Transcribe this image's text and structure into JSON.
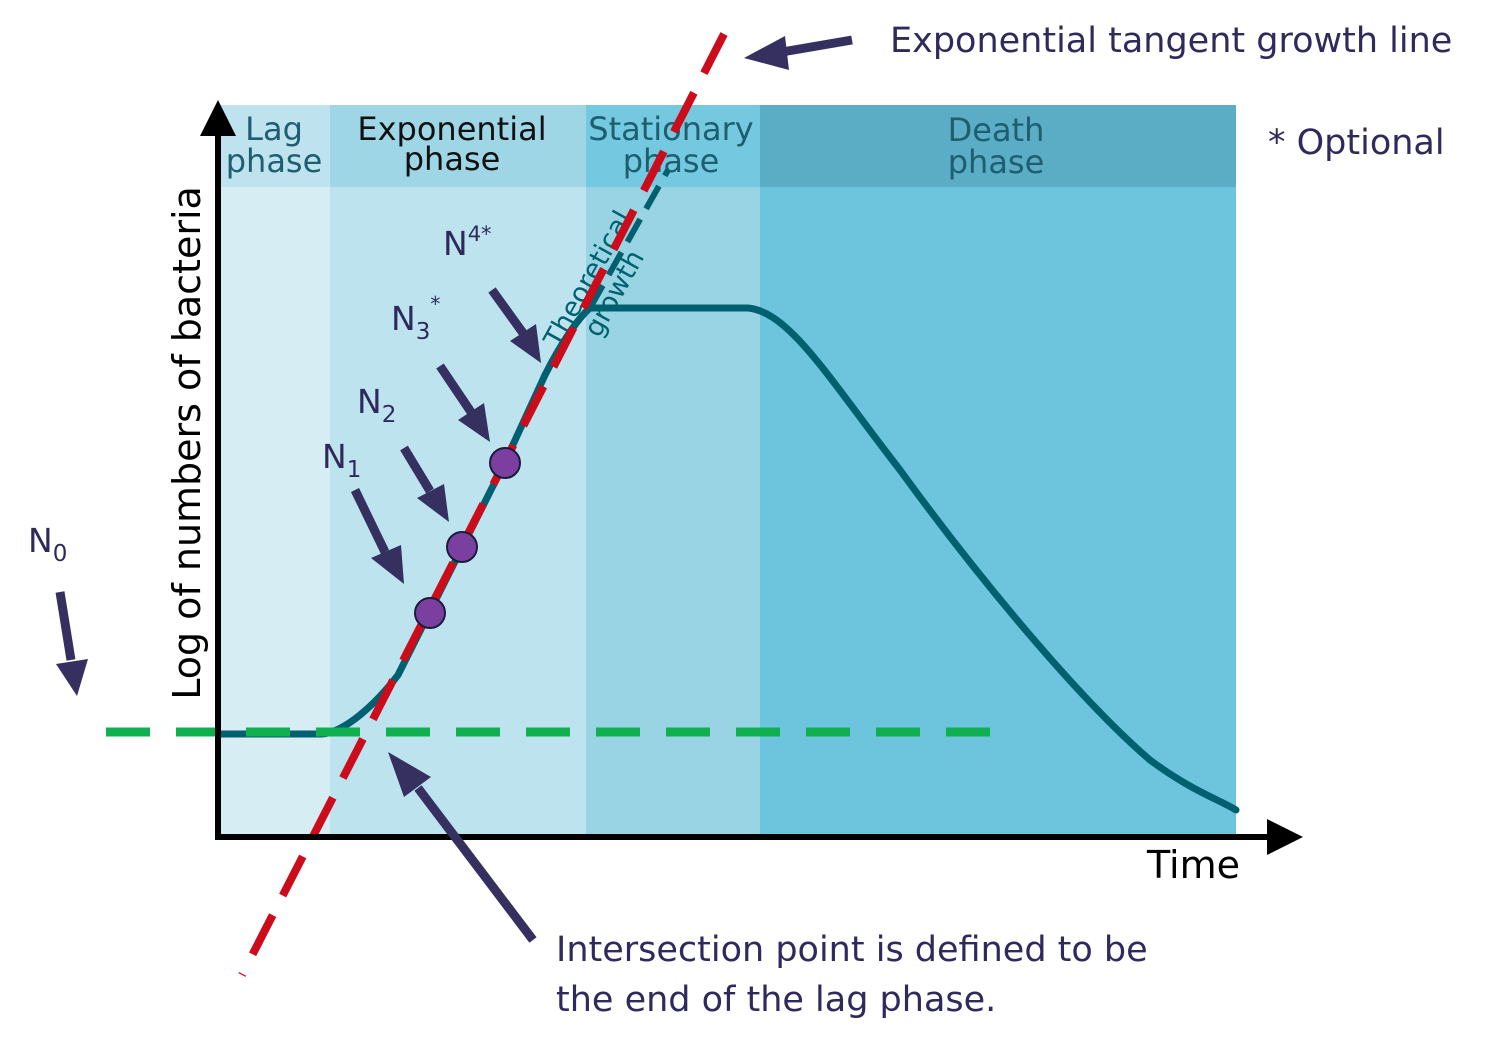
{
  "phases": {
    "lag": [
      "Lag",
      "phase"
    ],
    "exponential": [
      "Exponential",
      "phase"
    ],
    "stationary": [
      "Stationary",
      "phase"
    ],
    "death": [
      "Death",
      "phase"
    ]
  },
  "y_axis_label": "Log of numbers of bacteria",
  "x_axis_label": "Time",
  "curve_label": [
    "Theoretical",
    "growth"
  ],
  "tangent_label": "Exponential tangent growth line",
  "optional_note": "* Optional",
  "intersection_note": [
    "Intersection point is defined to be",
    "the end of the lag phase."
  ],
  "n_labels": {
    "n0": {
      "base": "N",
      "sub": "0"
    },
    "n1": {
      "base": "N",
      "sub": "1"
    },
    "n2": {
      "base": "N",
      "sub": "2"
    },
    "n3": {
      "base": "N",
      "sub": "3",
      "sup": "*"
    },
    "n4": {
      "base": "N",
      "sup": "4*"
    }
  },
  "colors": {
    "lag_bg": "#d6edf3",
    "lag_head": "#bfe3ee",
    "exp_bg": "#bde3ef",
    "exp_head": "#9ed6e6",
    "stat_bg": "#98d4e4",
    "stat_head": "#74c8df",
    "death_bg": "#6cc4dd",
    "death_head": "#5bacc5",
    "curve": "#00606f",
    "tangent": "#cc0c1a",
    "baseline": "#10b050",
    "arrow": "#35305f",
    "point": "#7b3fa0",
    "label_text": "#2f2a5c"
  }
}
